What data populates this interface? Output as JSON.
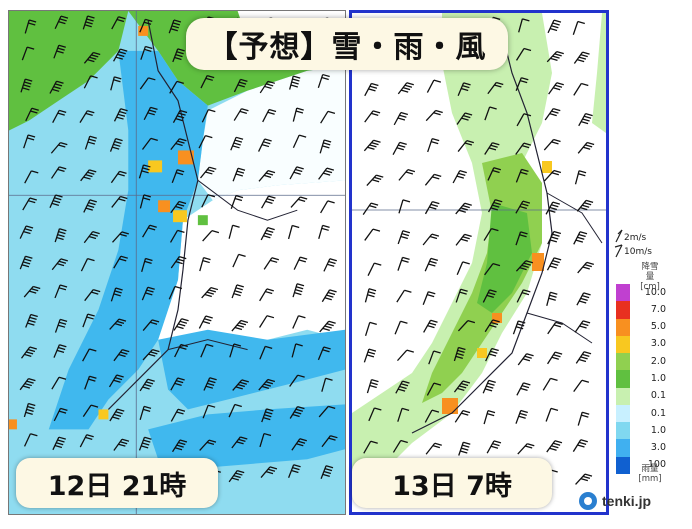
{
  "title": "【予想】雪・雨・風",
  "panels": [
    {
      "time_label": "12日 21時"
    },
    {
      "time_label": "13日 7時"
    }
  ],
  "legend": {
    "wind_scale": [
      "2m/s",
      "10m/s"
    ],
    "snow_unit": "降雪量\n[cm]",
    "rain_unit": "雨量\n[mm]",
    "snow_levels": [
      "10.0",
      "7.0",
      "5.0",
      "3.0",
      "2.0",
      "1.0",
      "0.1"
    ],
    "rain_levels": [
      "0.1",
      "1.0",
      "3.0",
      "100"
    ],
    "snow_colors": [
      "#c040d0",
      "#e83020",
      "#f89020",
      "#f8c820",
      "#90d050",
      "#60c040",
      "#c8f0b0"
    ],
    "rain_colors": [
      "#c8f0ff",
      "#80d8f0",
      "#40b0f0",
      "#1060d0"
    ]
  },
  "brand": "tenki.jp",
  "colors": {
    "rain_light": "#8fdcf0",
    "rain_medium": "#40b8ee",
    "snow_light": "#c8f0b0",
    "snow_medium": "#60c040",
    "snow_heavy": "#f89020",
    "border_right_panel": "#2233cc"
  }
}
